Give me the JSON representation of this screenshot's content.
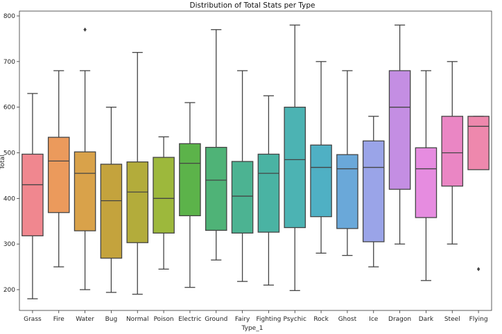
{
  "chart_data": {
    "type": "box",
    "title": "Distribution of Total Stats per Type",
    "xlabel": "Type_1",
    "ylabel": "Total",
    "ylim": [
      170,
      812
    ],
    "yticks": [
      200,
      300,
      400,
      500,
      600,
      700,
      800
    ],
    "grid": false,
    "legend": "none",
    "categories": [
      "Grass",
      "Fire",
      "Water",
      "Bug",
      "Normal",
      "Poison",
      "Electric",
      "Ground",
      "Fairy",
      "Fighting",
      "Psychic",
      "Rock",
      "Ghost",
      "Ice",
      "Dragon",
      "Dark",
      "Steel",
      "Flying"
    ],
    "boxes": [
      {
        "category": "Grass",
        "whisker_low": 180,
        "q1": 318,
        "median": 430,
        "q3": 497,
        "whisker_high": 630,
        "outliers": [],
        "color": "#f0878f"
      },
      {
        "category": "Fire",
        "whisker_low": 250,
        "q1": 369,
        "median": 482,
        "q3": 534,
        "whisker_high": 680,
        "outliers": [],
        "color": "#eb9a5c"
      },
      {
        "category": "Water",
        "whisker_low": 200,
        "q1": 329,
        "median": 455,
        "q3": 502,
        "whisker_high": 680,
        "outliers": [
          770
        ],
        "color": "#d9a24a"
      },
      {
        "category": "Bug",
        "whisker_low": 194,
        "q1": 269,
        "median": 395,
        "q3": 475,
        "whisker_high": 600,
        "outliers": [],
        "color": "#c4a33d"
      },
      {
        "category": "Normal",
        "whisker_low": 190,
        "q1": 303,
        "median": 414,
        "q3": 480,
        "whisker_high": 720,
        "outliers": [],
        "color": "#b3ac3b"
      },
      {
        "category": "Poison",
        "whisker_low": 245,
        "q1": 324,
        "median": 400,
        "q3": 490,
        "whisker_high": 535,
        "outliers": [],
        "color": "#9db83c"
      },
      {
        "category": "Electric",
        "whisker_low": 205,
        "q1": 362,
        "median": 477,
        "q3": 520,
        "whisker_high": 610,
        "outliers": [],
        "color": "#5cb34a"
      },
      {
        "category": "Ground",
        "whisker_low": 265,
        "q1": 330,
        "median": 440,
        "q3": 512,
        "whisker_high": 770,
        "outliers": [],
        "color": "#4fb377"
      },
      {
        "category": "Fairy",
        "whisker_low": 218,
        "q1": 324,
        "median": 405,
        "q3": 481,
        "whisker_high": 680,
        "outliers": [],
        "color": "#4cb392"
      },
      {
        "category": "Fighting",
        "whisker_low": 210,
        "q1": 326,
        "median": 455,
        "q3": 497,
        "whisker_high": 625,
        "outliers": [],
        "color": "#4ab3a3"
      },
      {
        "category": "Psychic",
        "whisker_low": 198,
        "q1": 336,
        "median": 485,
        "q3": 600,
        "whisker_high": 780,
        "outliers": [],
        "color": "#4cb3b3"
      },
      {
        "category": "Rock",
        "whisker_low": 280,
        "q1": 360,
        "median": 468,
        "q3": 517,
        "whisker_high": 700,
        "outliers": [],
        "color": "#4fb0c4"
      },
      {
        "category": "Ghost",
        "whisker_low": 275,
        "q1": 334,
        "median": 465,
        "q3": 496,
        "whisker_high": 680,
        "outliers": [],
        "color": "#6aa8d9"
      },
      {
        "category": "Ice",
        "whisker_low": 250,
        "q1": 305,
        "median": 468,
        "q3": 526,
        "whisker_high": 580,
        "outliers": [],
        "color": "#9aa4e8"
      },
      {
        "category": "Dragon",
        "whisker_low": 300,
        "q1": 420,
        "median": 600,
        "q3": 680,
        "whisker_high": 780,
        "outliers": [],
        "color": "#c48ee3"
      },
      {
        "category": "Dark",
        "whisker_low": 220,
        "q1": 358,
        "median": 465,
        "q3": 511,
        "whisker_high": 680,
        "outliers": [],
        "color": "#e68ce0"
      },
      {
        "category": "Steel",
        "whisker_low": 300,
        "q1": 427,
        "median": 500,
        "q3": 580,
        "whisker_high": 700,
        "outliers": [],
        "color": "#ea86c4"
      },
      {
        "category": "Flying",
        "whisker_low": 463,
        "q1": 463,
        "median": 558,
        "q3": 580,
        "whisker_high": 580,
        "outliers": [
          245
        ],
        "color": "#ee88ad"
      }
    ]
  }
}
